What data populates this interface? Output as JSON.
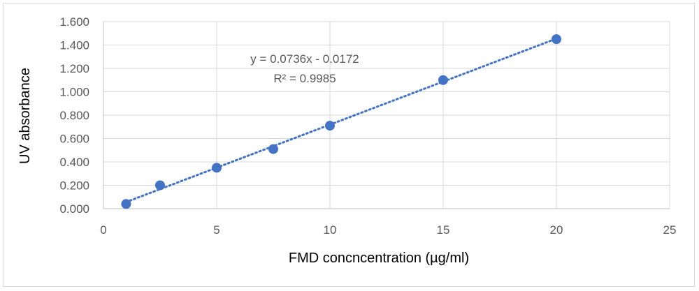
{
  "chart_data": {
    "type": "scatter",
    "title": "",
    "xlabel": "FMD concncentration (µg/ml)",
    "ylabel": "UV absorbance",
    "xlim": [
      0,
      25
    ],
    "ylim": [
      0,
      1.6
    ],
    "x_ticks": [
      0,
      5,
      10,
      15,
      20,
      25
    ],
    "x_tick_labels": [
      "0",
      "5",
      "10",
      "15",
      "20",
      "25"
    ],
    "y_ticks": [
      0,
      0.2,
      0.4,
      0.6,
      0.8,
      1.0,
      1.2,
      1.4,
      1.6
    ],
    "y_tick_labels": [
      "0.000",
      "0.200",
      "0.400",
      "0.600",
      "0.800",
      "1.000",
      "1.200",
      "1.400",
      "1.600"
    ],
    "grid": true,
    "series": [
      {
        "x": [
          1,
          2.5,
          5,
          7.5,
          10,
          15,
          20
        ],
        "y": [
          0.04,
          0.2,
          0.35,
          0.51,
          0.71,
          1.1,
          1.45
        ],
        "color": "#4472c4"
      }
    ],
    "trendline": {
      "type": "linear",
      "slope": 0.0736,
      "intercept": -0.0172,
      "x_range": [
        1,
        20
      ],
      "color": "#4472c4",
      "style": "dotted",
      "equation_text": "y = 0.0736x - 0.0172",
      "r2_text": "R² = 0.9985"
    }
  }
}
